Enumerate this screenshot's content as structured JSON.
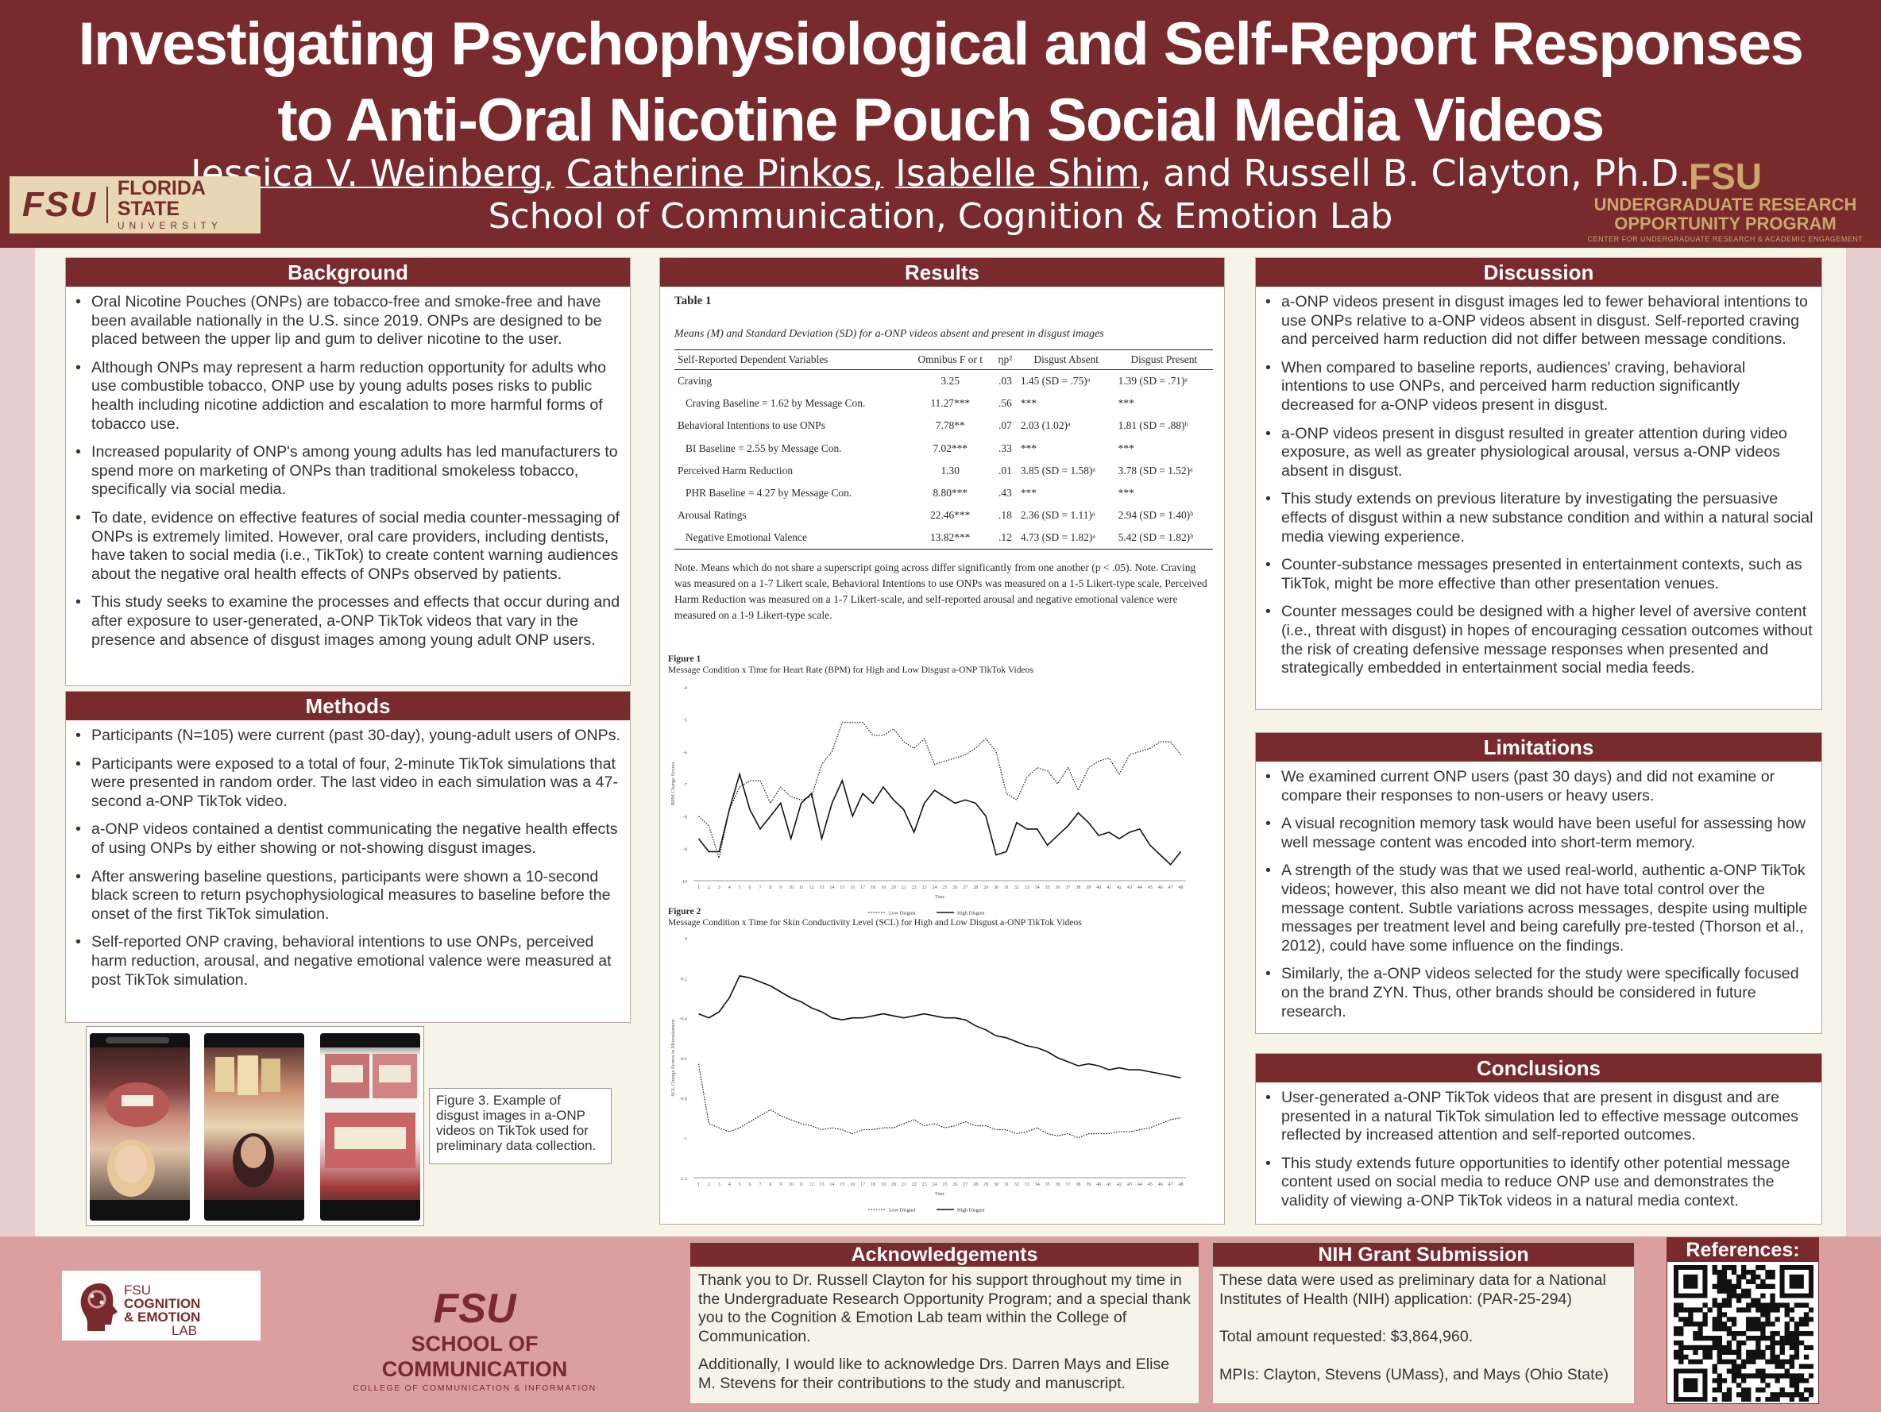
{
  "title_line1": "Investigating Psychophysiological and Self-Report Responses",
  "title_line2": "to Anti-Oral Nicotine Pouch Social Media Videos",
  "authors": {
    "a1": "Jessica V. Weinberg,",
    "a2": "Catherine Pinkos,",
    "a3": "Isabelle Shim",
    "rest": ", and Russell B. Clayton, Ph.D."
  },
  "department": "School of Communication, Cognition & Emotion Lab",
  "logo_left": {
    "mark": "FSU",
    "name": "FLORIDA STATE",
    "sub": "UNIVERSITY"
  },
  "logo_right": {
    "mark": "FSU",
    "line1": "UNDERGRADUATE RESEARCH",
    "line2": "OPPORTUNITY PROGRAM",
    "line3": "CENTER FOR UNDERGRADUATE RESEARCH & ACADEMIC ENGAGEMENT"
  },
  "background": {
    "heading": "Background",
    "items": [
      "Oral Nicotine Pouches (ONPs) are tobacco-free and smoke-free and have been available nationally in the U.S. since 2019. ONPs are designed to be placed between the upper lip and gum to deliver nicotine to the user.",
      "Although ONPs may represent a harm reduction opportunity for adults who use combustible tobacco, ONP use by young adults poses risks to public health including nicotine addiction and escalation to more harmful forms of tobacco use.",
      "Increased popularity of ONP's among young adults has led manufacturers to spend more on marketing of ONPs than traditional smokeless tobacco, specifically via social media.",
      "To date, evidence on effective features of social media counter-messaging of ONPs is extremely limited. However, oral care providers, including dentists, have taken to social media (i.e., TikTok) to create content warning audiences about the negative oral health effects of ONPs observed by patients.",
      "This study seeks to examine the processes and effects that occur during and after exposure to user-generated, a-ONP TikTok videos that vary in the presence and absence of disgust images among young adult ONP users."
    ]
  },
  "methods": {
    "heading": "Methods",
    "items": [
      "Participants (N=105) were current (past 30-day), young-adult users of ONPs.",
      "Participants were exposed to a total of four, 2-minute TikTok simulations that were presented in random order. The last video in each simulation was a 47-second a-ONP TikTok video.",
      "a-ONP videos contained a dentist communicating the negative health effects of using ONPs by either showing or not-showing disgust images.",
      "After answering baseline questions, participants were shown a 10-second black screen to return psychophysiological measures to baseline before the onset of the first TikTok simulation.",
      "Self-reported ONP craving, behavioral intentions to use ONPs, perceived harm reduction, arousal, and negative emotional valence were measured at post TikTok simulation."
    ]
  },
  "figure3": {
    "label": "Figure 3.",
    "caption": " Example of disgust images in a-ONP videos on TikTok used for preliminary data collection."
  },
  "results": {
    "heading": "Results",
    "table_label": "Table 1",
    "table_caption": "Means (M) and Standard Deviation (SD) for a-ONP videos absent and present in disgust images",
    "columns": [
      "Self-Reported Dependent Variables",
      "Omnibus F or t",
      "ηp²",
      "Disgust Absent",
      "Disgust Present"
    ],
    "rows": [
      [
        "Craving",
        "3.25",
        ".03",
        "1.45 (SD = .75)ᵃ",
        "1.39 (SD = .71)ᵃ"
      ],
      [
        "Craving Baseline = 1.62 by Message Con.",
        "11.27***",
        ".56",
        "***",
        "***"
      ],
      [
        "Behavioral Intentions to use ONPs",
        "7.78**",
        ".07",
        "2.03 (1.02)ᵃ",
        "1.81 (SD = .88)ᵇ"
      ],
      [
        "BI Baseline = 2.55 by Message Con.",
        "7.02***",
        ".33",
        "***",
        "***"
      ],
      [
        "Perceived Harm Reduction",
        "1.30",
        ".01",
        "3.85 (SD = 1.58)ᵃ",
        "3.78 (SD = 1.52)ᵃ"
      ],
      [
        "PHR Baseline = 4.27 by Message Con.",
        "8.80***",
        ".43",
        "***",
        "***"
      ],
      [
        "Arousal Ratings",
        "22.46***",
        ".18",
        "2.36 (SD = 1.11)ᵃ",
        "2.94 (SD = 1.40)ᵇ"
      ],
      [
        "Negative Emotional Valence",
        "13.82***",
        ".12",
        "4.73 (SD = 1.82)ᵃ",
        "5.42 (SD = 1.82)ᵇ"
      ]
    ],
    "note": "Note. Means which do not share a superscript going across differ significantly from one another (p < .05). Note. Craving was measured on a 1-7 Likert scale, Behavioral Intentions to use ONPs was measured on a 1-5 Likert-type scale, Perceived Harm Reduction was measured on a 1-7 Likert-scale, and self-reported arousal and negative emotional valence were measured on a 1-9 Likert-type scale."
  },
  "chart_data": [
    {
      "type": "line",
      "title": "Figure 1",
      "subtitle": "Message Condition x Time for Heart Rate (BPM) for High and Low Disgust a-ONP TikTok Videos",
      "ylabel": "BPM Change Scores",
      "xlabel": "Time",
      "x": [
        1,
        2,
        3,
        4,
        5,
        6,
        7,
        8,
        9,
        10,
        11,
        12,
        13,
        14,
        15,
        16,
        17,
        18,
        19,
        20,
        21,
        22,
        23,
        24,
        25,
        26,
        27,
        28,
        29,
        30,
        31,
        32,
        33,
        34,
        35,
        36,
        37,
        38,
        39,
        40,
        41,
        42,
        43,
        44,
        45,
        46,
        47,
        48
      ],
      "yticks": [
        "-4",
        "-5",
        "-6",
        "-7",
        "-8",
        "-9",
        "-10"
      ],
      "ylim": [
        -10,
        -4
      ],
      "series": [
        {
          "name": "Low Disgust",
          "values": [
            -8.0,
            -8.3,
            -9.3,
            -7.8,
            -7.1,
            -6.9,
            -6.9,
            -7.6,
            -7.1,
            -7.4,
            -7.5,
            -7.4,
            -6.4,
            -6.0,
            -5.1,
            -5.1,
            -5.1,
            -5.5,
            -5.5,
            -5.3,
            -5.7,
            -5.9,
            -5.6,
            -6.4,
            -6.3,
            -6.2,
            -6.1,
            -5.9,
            -5.6,
            -6.0,
            -7.3,
            -7.5,
            -6.8,
            -6.5,
            -6.6,
            -7.0,
            -6.5,
            -7.2,
            -6.5,
            -6.3,
            -6.2,
            -6.7,
            -6.1,
            -6.0,
            -5.9,
            -5.7,
            -5.7,
            -6.1
          ]
        },
        {
          "name": "High Disgust",
          "values": [
            -8.7,
            -9.1,
            -9.1,
            -7.8,
            -6.7,
            -7.8,
            -8.4,
            -8.0,
            -7.6,
            -8.7,
            -7.6,
            -7.3,
            -8.7,
            -7.6,
            -6.9,
            -8.0,
            -7.3,
            -7.6,
            -7.1,
            -7.5,
            -7.8,
            -8.5,
            -7.6,
            -7.2,
            -7.4,
            -7.6,
            -7.5,
            -7.6,
            -8.0,
            -9.2,
            -9.1,
            -8.2,
            -8.4,
            -8.4,
            -8.9,
            -8.6,
            -8.3,
            -7.9,
            -8.2,
            -8.6,
            -8.5,
            -8.7,
            -8.5,
            -8.4,
            -8.9,
            -9.2,
            -9.5,
            -9.1
          ]
        }
      ]
    },
    {
      "type": "line",
      "title": "Figure 2",
      "subtitle": "Message Condition x Time for Skin Conductivity Level (SCL) for High and Low Disgust a-ONP TikTok Videos",
      "ylabel": "SCL Change Scores in Microsiemens",
      "xlabel": "Time",
      "x": [
        1,
        2,
        3,
        4,
        5,
        6,
        7,
        8,
        9,
        10,
        11,
        12,
        13,
        14,
        15,
        16,
        17,
        18,
        19,
        20,
        21,
        22,
        23,
        24,
        25,
        26,
        27,
        28,
        29,
        30,
        31,
        32,
        33,
        34,
        35,
        36,
        37,
        38,
        39,
        40,
        41,
        42,
        43,
        44,
        45,
        46,
        47,
        48
      ],
      "yticks": [
        "0",
        "-0.2",
        "-0.4",
        "-0.6",
        "-0.8",
        "-1",
        "-1.2"
      ],
      "ylim": [
        -1.2,
        0
      ],
      "series": [
        {
          "name": "Low Disgust",
          "values": [
            -0.63,
            -0.93,
            -0.95,
            -0.97,
            -0.95,
            -0.92,
            -0.89,
            -0.86,
            -0.89,
            -0.91,
            -0.93,
            -0.94,
            -0.96,
            -0.95,
            -0.96,
            -0.98,
            -0.96,
            -0.96,
            -0.95,
            -0.95,
            -0.93,
            -0.91,
            -0.94,
            -0.93,
            -0.95,
            -0.94,
            -0.92,
            -0.94,
            -0.94,
            -0.96,
            -0.96,
            -0.98,
            -0.97,
            -0.95,
            -0.98,
            -0.99,
            -0.98,
            -1.0,
            -0.98,
            -0.98,
            -0.98,
            -0.97,
            -0.97,
            -0.96,
            -0.95,
            -0.93,
            -0.91,
            -0.9
          ]
        },
        {
          "name": "High Disgust",
          "values": [
            -0.38,
            -0.4,
            -0.37,
            -0.3,
            -0.19,
            -0.2,
            -0.22,
            -0.24,
            -0.27,
            -0.3,
            -0.32,
            -0.35,
            -0.37,
            -0.4,
            -0.41,
            -0.4,
            -0.4,
            -0.39,
            -0.38,
            -0.39,
            -0.4,
            -0.39,
            -0.38,
            -0.39,
            -0.4,
            -0.4,
            -0.41,
            -0.44,
            -0.46,
            -0.49,
            -0.5,
            -0.52,
            -0.54,
            -0.55,
            -0.57,
            -0.6,
            -0.62,
            -0.64,
            -0.63,
            -0.64,
            -0.66,
            -0.65,
            -0.66,
            -0.66,
            -0.67,
            -0.68,
            -0.69,
            -0.7
          ]
        }
      ]
    }
  ],
  "discussion": {
    "heading": "Discussion",
    "items": [
      "a-ONP videos present in disgust images led to fewer behavioral intentions to use ONPs relative to a-ONP videos absent in disgust. Self-reported craving and perceived harm reduction did not differ between message conditions.",
      "When compared to baseline reports, audiences' craving, behavioral intentions to use ONPs, and perceived harm reduction significantly decreased for a-ONP videos present in disgust.",
      "a-ONP videos present in disgust resulted in greater attention during video exposure, as well as greater physiological arousal, versus a-ONP videos absent in disgust.",
      "This study extends on previous literature by investigating the persuasive effects of disgust within a new substance condition and within a natural social media viewing experience.",
      "Counter-substance messages presented in entertainment contexts, such as TikTok, might be more effective than other presentation venues.",
      "Counter messages could be designed with a higher level of aversive content (i.e., threat with disgust) in hopes of encouraging cessation outcomes without the risk of creating defensive message responses when presented and strategically embedded in entertainment social media feeds."
    ]
  },
  "limitations": {
    "heading": "Limitations",
    "items": [
      "We examined current ONP users (past 30 days) and did not examine or compare their responses to non-users or heavy users.",
      "A visual recognition memory task would have been useful for assessing how well message content was encoded into short-term memory.",
      "A strength of the study was that we used real-world, authentic a-ONP TikTok videos; however, this also meant we did not have total control over the message content. Subtle variations across messages, despite using multiple messages per treatment level and being carefully pre-tested (Thorson et al., 2012), could have some influence on the findings.",
      "Similarly, the a-ONP videos selected for the study were specifically focused on the brand ZYN. Thus, other brands should be considered in future research."
    ]
  },
  "conclusions": {
    "heading": "Conclusions",
    "items": [
      "User-generated a-ONP TikTok videos that are present in disgust and are presented in a natural TikTok simulation led to effective message outcomes reflected by increased attention and self-reported outcomes.",
      "This study extends future opportunities to identify other potential message content used on social media to reduce ONP use and demonstrates the validity of viewing a-ONP TikTok videos in a natural media context."
    ]
  },
  "acknowledgements": {
    "heading": "Acknowledgements",
    "p1": "Thank you to Dr. Russell Clayton for his support throughout my time in the Undergraduate Research Opportunity Program; and a special thank you to the Cognition & Emotion Lab team within the College of Communication.",
    "p2": "Additionally, I would like to acknowledge Drs. Darren Mays and Elise M. Stevens for their contributions to the study and manuscript."
  },
  "nih": {
    "heading": "NIH Grant Submission",
    "p1": "These data were used as preliminary data for a National Institutes of Health (NIH) application: (PAR-25-294)",
    "p2": "Total amount requested: $3,864,960.",
    "p3": "MPIs: Clayton, Stevens (UMass), and Mays (Ohio State)"
  },
  "references": {
    "heading": "References:"
  },
  "footer": {
    "lab_l1": "FSU",
    "lab_l2": "COGNITION",
    "lab_l3": "& EMOTION",
    "lab_l4": "LAB",
    "school_mark": "FSU",
    "school_name": "SCHOOL OF COMMUNICATION",
    "school_sub": "COLLEGE OF COMMUNICATION & INFORMATION"
  },
  "colors": {
    "maroon": "#782a2d",
    "gold": "#cba76a",
    "cream": "#f6f3e8",
    "footer": "#dc9fa0"
  }
}
